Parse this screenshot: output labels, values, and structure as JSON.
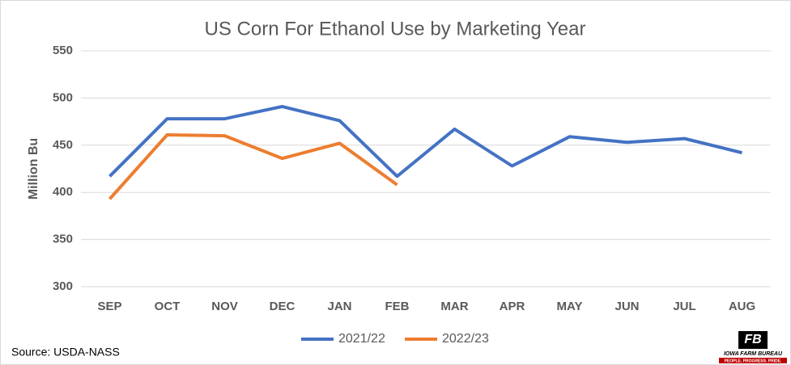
{
  "chart_data": {
    "type": "line",
    "title": "US Corn For Ethanol Use by Marketing Year",
    "y_label": "Million Bu",
    "categories": [
      "SEP",
      "OCT",
      "NOV",
      "DEC",
      "JAN",
      "FEB",
      "MAR",
      "APR",
      "MAY",
      "JUN",
      "JUL",
      "AUG"
    ],
    "series": [
      {
        "name": "2021/22",
        "color": "#4472c4",
        "values": [
          417,
          478,
          478,
          491,
          476,
          417,
          467,
          428,
          459,
          453,
          457,
          442
        ]
      },
      {
        "name": "2022/23",
        "color": "#ed7d31",
        "values": [
          393,
          461,
          460,
          436,
          452,
          408,
          null,
          null,
          null,
          null,
          null,
          null
        ]
      }
    ],
    "ylim": [
      300,
      550
    ],
    "yticks": [
      300,
      350,
      400,
      450,
      500,
      550
    ],
    "grid": true,
    "legend": "bottom",
    "source": "Source: USDA-NASS",
    "logo": {
      "name": "IOWA FARM BUREAU",
      "tagline": "PEOPLE. PROGRESS. PRIDE."
    }
  }
}
